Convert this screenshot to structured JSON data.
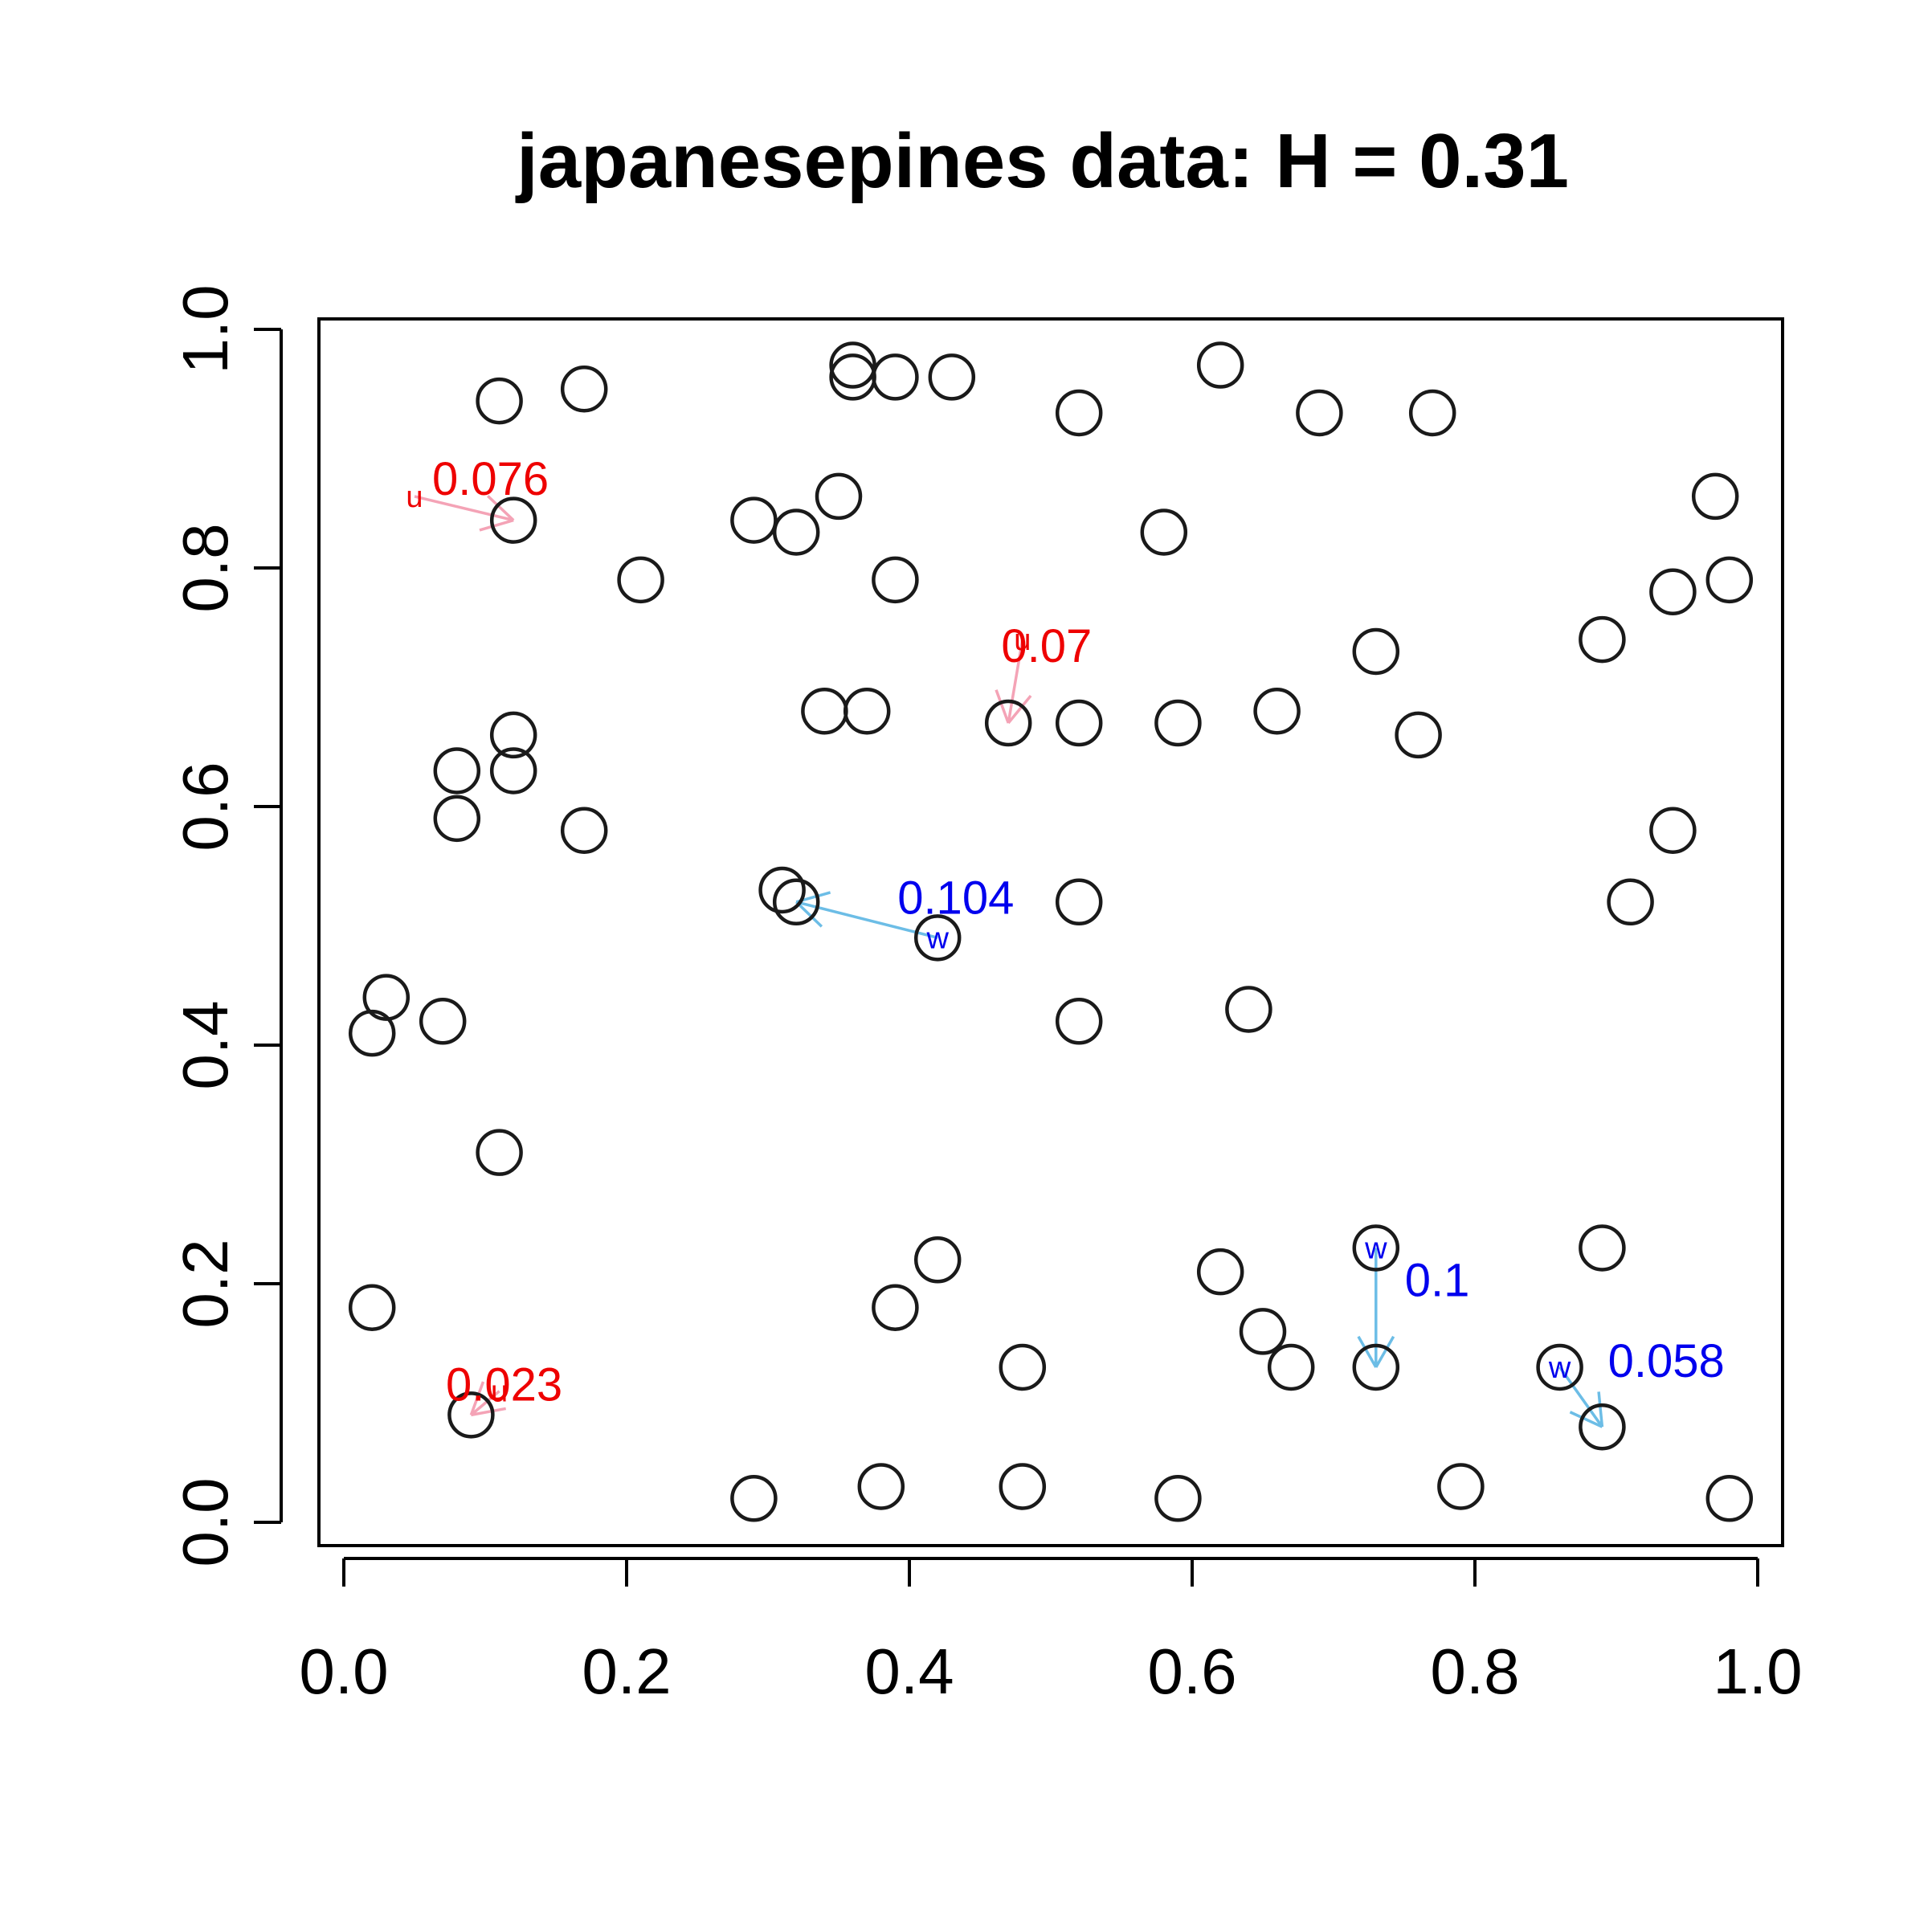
{
  "chart_data": {
    "type": "scatter",
    "title": "japanesepines data: H = 0.31",
    "xlabel": "",
    "ylabel": "",
    "xlim": [
      0,
      1
    ],
    "ylim": [
      0,
      1
    ],
    "x_ticks": [
      "0.0",
      "0.2",
      "0.4",
      "0.6",
      "0.8",
      "1.0"
    ],
    "y_ticks": [
      "0.0",
      "0.2",
      "0.4",
      "0.6",
      "0.8",
      "1.0"
    ],
    "grid": false,
    "point_color": "#1a1a1a",
    "points": [
      {
        "x": 0.36,
        "y": 0.97
      },
      {
        "x": 0.36,
        "y": 0.96
      },
      {
        "x": 0.39,
        "y": 0.96
      },
      {
        "x": 0.43,
        "y": 0.96
      },
      {
        "x": 0.11,
        "y": 0.94
      },
      {
        "x": 0.17,
        "y": 0.95
      },
      {
        "x": 0.52,
        "y": 0.93
      },
      {
        "x": 0.62,
        "y": 0.97
      },
      {
        "x": 0.69,
        "y": 0.93
      },
      {
        "x": 0.77,
        "y": 0.93
      },
      {
        "x": 0.12,
        "y": 0.84
      },
      {
        "x": 0.29,
        "y": 0.84
      },
      {
        "x": 0.32,
        "y": 0.83
      },
      {
        "x": 0.35,
        "y": 0.86
      },
      {
        "x": 0.58,
        "y": 0.83
      },
      {
        "x": 0.97,
        "y": 0.86
      },
      {
        "x": 0.21,
        "y": 0.79
      },
      {
        "x": 0.39,
        "y": 0.79
      },
      {
        "x": 0.94,
        "y": 0.78
      },
      {
        "x": 0.98,
        "y": 0.79
      },
      {
        "x": 0.89,
        "y": 0.74
      },
      {
        "x": 0.73,
        "y": 0.73
      },
      {
        "x": 0.34,
        "y": 0.68
      },
      {
        "x": 0.37,
        "y": 0.68
      },
      {
        "x": 0.47,
        "y": 0.67
      },
      {
        "x": 0.52,
        "y": 0.67
      },
      {
        "x": 0.59,
        "y": 0.67
      },
      {
        "x": 0.66,
        "y": 0.68
      },
      {
        "x": 0.76,
        "y": 0.66
      },
      {
        "x": 0.12,
        "y": 0.66
      },
      {
        "x": 0.08,
        "y": 0.63
      },
      {
        "x": 0.12,
        "y": 0.63
      },
      {
        "x": 0.08,
        "y": 0.59
      },
      {
        "x": 0.17,
        "y": 0.58
      },
      {
        "x": 0.94,
        "y": 0.58
      },
      {
        "x": 0.31,
        "y": 0.53
      },
      {
        "x": 0.32,
        "y": 0.52
      },
      {
        "x": 0.52,
        "y": 0.52
      },
      {
        "x": 0.91,
        "y": 0.52
      },
      {
        "x": 0.42,
        "y": 0.49
      },
      {
        "x": 0.03,
        "y": 0.44
      },
      {
        "x": 0.02,
        "y": 0.41
      },
      {
        "x": 0.07,
        "y": 0.42
      },
      {
        "x": 0.52,
        "y": 0.42
      },
      {
        "x": 0.64,
        "y": 0.43
      },
      {
        "x": 0.11,
        "y": 0.31
      },
      {
        "x": 0.02,
        "y": 0.18
      },
      {
        "x": 0.39,
        "y": 0.18
      },
      {
        "x": 0.42,
        "y": 0.22
      },
      {
        "x": 0.62,
        "y": 0.21
      },
      {
        "x": 0.73,
        "y": 0.23
      },
      {
        "x": 0.89,
        "y": 0.23
      },
      {
        "x": 0.65,
        "y": 0.16
      },
      {
        "x": 0.67,
        "y": 0.13
      },
      {
        "x": 0.48,
        "y": 0.13
      },
      {
        "x": 0.73,
        "y": 0.13
      },
      {
        "x": 0.86,
        "y": 0.13
      },
      {
        "x": 0.89,
        "y": 0.08
      },
      {
        "x": 0.09,
        "y": 0.09
      },
      {
        "x": 0.29,
        "y": 0.02
      },
      {
        "x": 0.38,
        "y": 0.03
      },
      {
        "x": 0.48,
        "y": 0.03
      },
      {
        "x": 0.59,
        "y": 0.02
      },
      {
        "x": 0.79,
        "y": 0.03
      },
      {
        "x": 0.98,
        "y": 0.02
      }
    ],
    "annotations": [
      {
        "kind": "u",
        "marker": "u",
        "label": "0.076",
        "color": "#ee0000",
        "arrow_color": "#f4a3b6",
        "from": [
          0.05,
          0.86
        ],
        "to": [
          0.12,
          0.84
        ]
      },
      {
        "kind": "u",
        "marker": "u",
        "label": "0.07",
        "color": "#ee0000",
        "arrow_color": "#f4a3b6",
        "from": [
          0.48,
          0.74
        ],
        "to": [
          0.47,
          0.67
        ]
      },
      {
        "kind": "u",
        "marker": "u",
        "label": "0.023",
        "color": "#ee0000",
        "arrow_color": "#f4a3b6",
        "from": [
          0.11,
          0.11
        ],
        "to": [
          0.09,
          0.09
        ]
      },
      {
        "kind": "w",
        "marker": "w",
        "label": "0.104",
        "color": "#0000ee",
        "arrow_color": "#6cbde6",
        "from": [
          0.42,
          0.49
        ],
        "to": [
          0.32,
          0.52
        ]
      },
      {
        "kind": "w",
        "marker": "w",
        "label": "0.1",
        "color": "#0000ee",
        "arrow_color": "#6cbde6",
        "from": [
          0.73,
          0.23
        ],
        "to": [
          0.73,
          0.13
        ]
      },
      {
        "kind": "w",
        "marker": "w",
        "label": "0.058",
        "color": "#0000ee",
        "arrow_color": "#6cbde6",
        "from": [
          0.86,
          0.13
        ],
        "to": [
          0.89,
          0.08
        ]
      }
    ]
  }
}
